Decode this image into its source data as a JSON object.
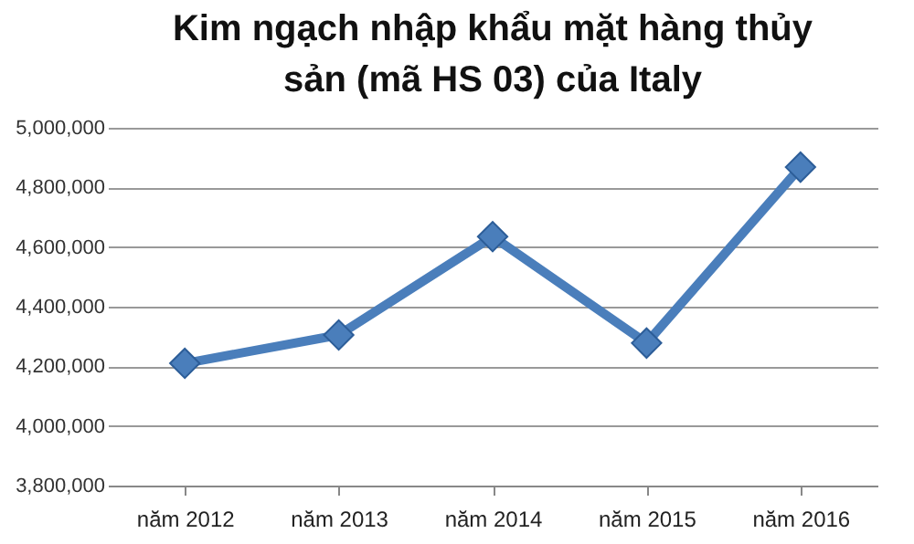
{
  "chart_data": {
    "type": "line",
    "title": "Kim ngạch nhập khẩu mặt hàng thủy sản (mã HS 03) của Italy",
    "categories": [
      "năm 2012",
      "năm 2013",
      "năm 2014",
      "năm 2015",
      "năm 2016"
    ],
    "series": [
      {
        "color": "#4a7ebb",
        "values": [
          4210000,
          4305000,
          4635000,
          4278000,
          4868000
        ]
      }
    ],
    "ylim": [
      3800000,
      5000000
    ],
    "yticks": [
      {
        "value": 3800000,
        "label": "3,800,000"
      },
      {
        "value": 4000000,
        "label": "4,000,000"
      },
      {
        "value": 4200000,
        "label": "4,200,000"
      },
      {
        "value": 4400000,
        "label": "4,400,000"
      },
      {
        "value": 4600000,
        "label": "4,600,000"
      },
      {
        "value": 4800000,
        "label": "4,800,000"
      },
      {
        "value": 5000000,
        "label": "5,000,000"
      }
    ],
    "grid": "y",
    "marker": "diamond",
    "line_style": "solid",
    "legend": false
  }
}
